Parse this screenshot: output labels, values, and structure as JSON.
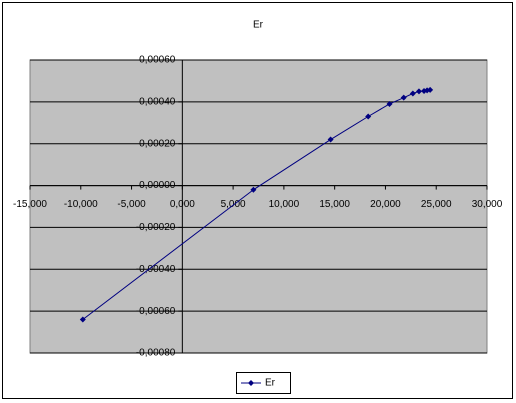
{
  "chart_data": {
    "type": "line",
    "title": "Er",
    "series": [
      {
        "name": "Er",
        "color": "#000080",
        "x": [
          -9800,
          7000,
          14600,
          18300,
          20400,
          21800,
          22700,
          23300,
          23800,
          24100,
          24400
        ],
        "values": [
          -0.00064,
          -2e-05,
          0.00022,
          0.00033,
          0.00039,
          0.00042,
          0.00044,
          0.00045,
          0.000452,
          0.000455,
          0.000457
        ]
      }
    ],
    "xlim": [
      -15000,
      30000
    ],
    "xticks": [
      {
        "value": -15000,
        "label": "-15,000"
      },
      {
        "value": -10000,
        "label": "-10,000"
      },
      {
        "value": -5000,
        "label": "-5,000"
      },
      {
        "value": 0,
        "label": "0,000"
      },
      {
        "value": 5000,
        "label": "5,000"
      },
      {
        "value": 10000,
        "label": "10,000"
      },
      {
        "value": 15000,
        "label": "15,000"
      },
      {
        "value": 20000,
        "label": "20,000"
      },
      {
        "value": 25000,
        "label": "25,000"
      },
      {
        "value": 30000,
        "label": "30,000"
      }
    ],
    "ylim": [
      -0.0008,
      0.0006
    ],
    "yticks": [
      {
        "value": -0.0008,
        "label": "-0,00080"
      },
      {
        "value": -0.0006,
        "label": "-0,00060"
      },
      {
        "value": -0.0004,
        "label": "-0,00040"
      },
      {
        "value": -0.0002,
        "label": "-0,00020"
      },
      {
        "value": 0,
        "label": "0,00000"
      },
      {
        "value": 0.0002,
        "label": "0,00020"
      },
      {
        "value": 0.0004,
        "label": "0,00040"
      },
      {
        "value": 0.0006,
        "label": "0,00060"
      }
    ],
    "grid": true,
    "legend": "bottom"
  }
}
